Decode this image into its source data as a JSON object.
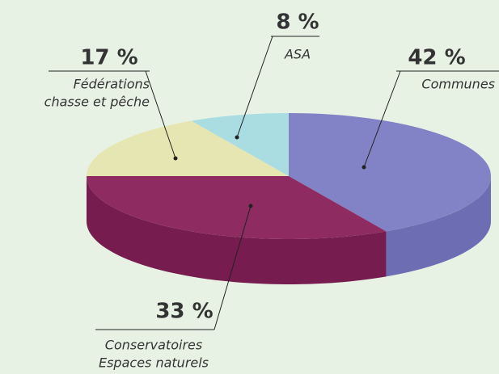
{
  "chart_data": {
    "type": "pie3d",
    "categories": [
      [
        "Communes"
      ],
      [
        "Conservatoires",
        "Espaces naturels"
      ],
      [
        "Fédérations",
        "chasse et pêche"
      ],
      [
        "ASA"
      ]
    ],
    "values": [
      42,
      33,
      17,
      8
    ],
    "value_labels": [
      "42 %",
      "33 %",
      "17 %",
      "8 %"
    ],
    "colors": [
      "#8282c6",
      "#8e2b60",
      "#e6e6b2",
      "#a9dde2"
    ],
    "side_colors": [
      "#6d6db3",
      "#761c4e",
      "#cfcf98",
      "#8fc7cc"
    ]
  }
}
